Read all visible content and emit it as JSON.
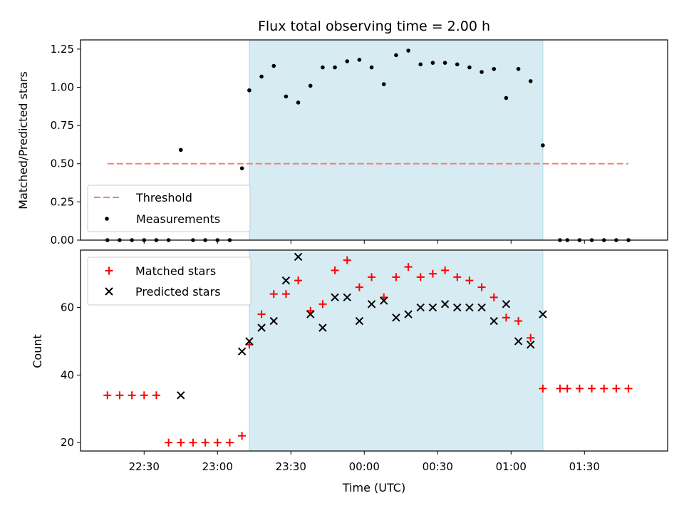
{
  "chart_data": [
    {
      "type": "scatter",
      "title": "Flux total observing time = 2.00 h",
      "ylabel": "Matched/Predicted stars",
      "xlabel": "",
      "ylim": [
        0,
        1.31
      ],
      "yticks": [
        0.0,
        0.25,
        0.5,
        0.75,
        1.0,
        1.25
      ],
      "ytick_labels": [
        "0.00",
        "0.25",
        "0.50",
        "0.75",
        "1.00",
        "1.25"
      ],
      "xlim": [
        "22:04",
        "02:04"
      ],
      "xticks": [
        "22:30",
        "23:00",
        "23:30",
        "00:00",
        "00:30",
        "01:00",
        "01:30"
      ],
      "shaded_interval": [
        "23:13",
        "01:13"
      ],
      "shaded_color": "#add8e6",
      "legend_position": "lower left",
      "threshold": {
        "name": "Threshold",
        "y": 0.5,
        "x_range": [
          "22:15",
          "01:48"
        ],
        "color": "#f08080"
      },
      "series": [
        {
          "name": "Measurements",
          "color": "#000000",
          "x": [
            "22:15",
            "22:20",
            "22:25",
            "22:30",
            "22:35",
            "22:40",
            "22:45",
            "22:50",
            "22:55",
            "23:00",
            "23:05",
            "23:10",
            "23:13",
            "23:18",
            "23:23",
            "23:28",
            "23:33",
            "23:38",
            "23:43",
            "23:48",
            "23:53",
            "23:58",
            "00:03",
            "00:08",
            "00:13",
            "00:18",
            "00:23",
            "00:28",
            "00:33",
            "00:38",
            "00:43",
            "00:48",
            "00:53",
            "00:58",
            "01:03",
            "01:08",
            "01:13",
            "01:20",
            "01:23",
            "01:28",
            "01:33",
            "01:38",
            "01:43",
            "01:48"
          ],
          "y": [
            0,
            0,
            0,
            0,
            0,
            0,
            0.59,
            0,
            0,
            0,
            0,
            0.47,
            0.98,
            1.07,
            1.14,
            0.94,
            0.9,
            1.01,
            1.13,
            1.13,
            1.17,
            1.18,
            1.13,
            1.02,
            1.21,
            1.24,
            1.15,
            1.16,
            1.16,
            1.15,
            1.13,
            1.1,
            1.12,
            0.93,
            1.12,
            1.04,
            0.62,
            0,
            0,
            0,
            0,
            0,
            0,
            0
          ]
        }
      ]
    },
    {
      "type": "scatter",
      "title": "",
      "ylabel": "Count",
      "xlabel": "Time (UTC)",
      "ylim": [
        17.5,
        77
      ],
      "yticks": [
        20,
        40,
        60
      ],
      "ytick_labels": [
        "20",
        "40",
        "60"
      ],
      "xlim": [
        "22:04",
        "02:04"
      ],
      "xticks": [
        "22:30",
        "23:00",
        "23:30",
        "00:00",
        "00:30",
        "01:00",
        "01:30"
      ],
      "shaded_interval": [
        "23:13",
        "01:13"
      ],
      "shaded_color": "#add8e6",
      "legend_position": "upper left",
      "series": [
        {
          "name": "Matched stars",
          "color": "#ff0000",
          "marker": "plus",
          "x": [
            "22:15",
            "22:20",
            "22:25",
            "22:30",
            "22:35",
            "22:40",
            "22:45",
            "22:50",
            "22:55",
            "23:00",
            "23:05",
            "23:10",
            "23:13",
            "23:18",
            "23:23",
            "23:28",
            "23:33",
            "23:38",
            "23:43",
            "23:48",
            "23:53",
            "23:58",
            "00:03",
            "00:08",
            "00:13",
            "00:18",
            "00:23",
            "00:28",
            "00:33",
            "00:38",
            "00:43",
            "00:48",
            "00:53",
            "00:58",
            "01:03",
            "01:08",
            "01:13",
            "01:20",
            "01:23",
            "01:28",
            "01:33",
            "01:38",
            "01:43",
            "01:48"
          ],
          "y": [
            34,
            34,
            34,
            34,
            34,
            20,
            20,
            20,
            20,
            20,
            20,
            22,
            49,
            58,
            64,
            64,
            68,
            59,
            61,
            71,
            74,
            66,
            69,
            63,
            69,
            72,
            69,
            70,
            71,
            69,
            68,
            66,
            63,
            57,
            56,
            51,
            36,
            36,
            36,
            36,
            36,
            36,
            36,
            36
          ]
        },
        {
          "name": "Predicted stars",
          "color": "#000000",
          "marker": "x",
          "x": [
            "22:45",
            "23:10",
            "23:13",
            "23:18",
            "23:23",
            "23:28",
            "23:33",
            "23:38",
            "23:43",
            "23:48",
            "23:53",
            "23:58",
            "00:03",
            "00:08",
            "00:13",
            "00:18",
            "00:23",
            "00:28",
            "00:33",
            "00:38",
            "00:43",
            "00:48",
            "00:53",
            "00:58",
            "01:03",
            "01:08",
            "01:13"
          ],
          "y": [
            34,
            47,
            50,
            54,
            56,
            68,
            75,
            58,
            54,
            63,
            63,
            56,
            61,
            62,
            57,
            58,
            60,
            60,
            61,
            60,
            60,
            60,
            56,
            61,
            50,
            49,
            58
          ]
        }
      ]
    }
  ]
}
